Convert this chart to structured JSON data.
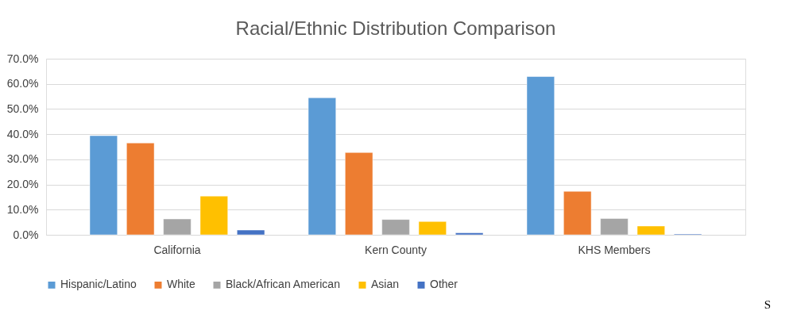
{
  "chart_data": {
    "type": "bar",
    "title": "Racial/Ethnic Distribution Comparison",
    "categories": [
      "California",
      "Kern County",
      "KHS Members"
    ],
    "series": [
      {
        "name": "Hispanic/Latino",
        "color": "#5b9bd5",
        "values": [
          39.4,
          54.5,
          62.9
        ]
      },
      {
        "name": "White",
        "color": "#ed7d31",
        "values": [
          36.5,
          32.7,
          17.3
        ]
      },
      {
        "name": "Black/African American",
        "color": "#a5a5a5",
        "values": [
          6.3,
          6.1,
          6.5
        ]
      },
      {
        "name": "Asian",
        "color": "#ffc000",
        "values": [
          15.4,
          5.3,
          3.5
        ]
      },
      {
        "name": "Other",
        "color": "#4472c4",
        "values": [
          1.9,
          0.8,
          0.3
        ]
      }
    ],
    "ylim": [
      0,
      70
    ],
    "yticks": [
      {
        "value": 0,
        "label": "0.0%"
      },
      {
        "value": 10,
        "label": "10.0%"
      },
      {
        "value": 20,
        "label": "20.0%"
      },
      {
        "value": 30,
        "label": "30.0%"
      },
      {
        "value": 40,
        "label": "40.0%"
      },
      {
        "value": 50,
        "label": "50.0%"
      },
      {
        "value": 60,
        "label": "60.0%"
      },
      {
        "value": 70,
        "label": "70.0%"
      }
    ],
    "grid": "y",
    "legend": "bottom",
    "annotations": [
      "S"
    ]
  }
}
